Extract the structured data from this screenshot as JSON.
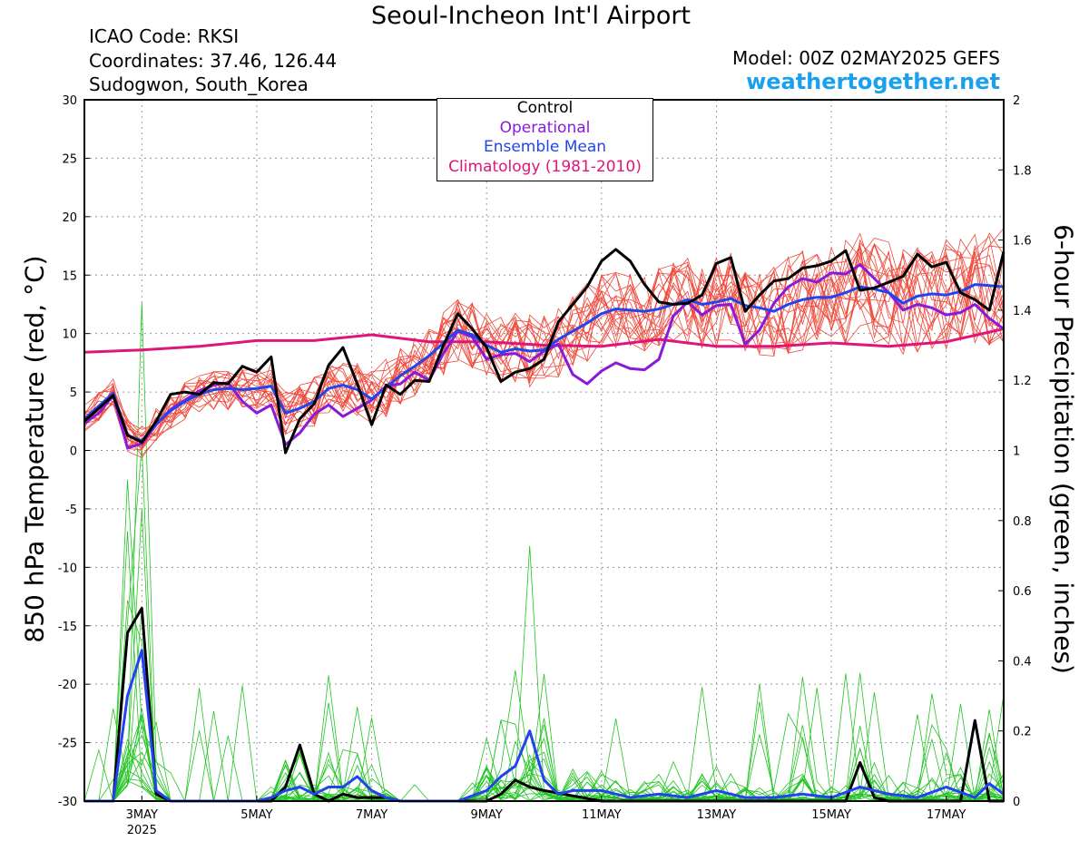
{
  "header": {
    "title": "Seoul-Incheon Int'l Airport",
    "icao": "ICAO Code: RKSI",
    "coordinates": "Coordinates: 37.46, 126.44",
    "location": "Sudogwon, South_Korea",
    "model": "Model: 00Z 02MAY2025 GEFS",
    "site": "weathertogether.net"
  },
  "legend": [
    {
      "label": "Control",
      "color": "#000000"
    },
    {
      "label": "Operational",
      "color": "#8a1ad8"
    },
    {
      "label": "Ensemble Mean",
      "color": "#2244ee"
    },
    {
      "label": "Climatology (1981-2010)",
      "color": "#e0157a"
    }
  ],
  "colors": {
    "members_temp": "#f0483a",
    "members_precip": "#22c422",
    "control": "#000000",
    "operational": "#8a1ad8",
    "mean": "#2244ee",
    "climatology": "#e0157a",
    "grid": "#999999"
  },
  "chart_data": {
    "type": "line",
    "xlabel": "",
    "ylabel": "850 hPa Temperature (red, °C)",
    "y2label": "6-hour Precipitation (green, inches)",
    "x_range_days": [
      2.0,
      18.0
    ],
    "ylim": [
      -30,
      30
    ],
    "y2lim": [
      0,
      2
    ],
    "grid": true,
    "legend_position": "top-center",
    "x_ticks": [
      {
        "day": 3,
        "label": "3MAY",
        "sublabel": "2025"
      },
      {
        "day": 5,
        "label": "5MAY",
        "sublabel": ""
      },
      {
        "day": 7,
        "label": "7MAY",
        "sublabel": ""
      },
      {
        "day": 9,
        "label": "9MAY",
        "sublabel": ""
      },
      {
        "day": 11,
        "label": "11MAY",
        "sublabel": ""
      },
      {
        "day": 13,
        "label": "13MAY",
        "sublabel": ""
      },
      {
        "day": 15,
        "label": "15MAY",
        "sublabel": ""
      },
      {
        "day": 17,
        "label": "17MAY",
        "sublabel": ""
      }
    ],
    "y_ticks": [
      30,
      25,
      20,
      15,
      10,
      5,
      0,
      -5,
      -10,
      -15,
      -20,
      -25,
      -30
    ],
    "y2_ticks": [
      2,
      1.8,
      1.6,
      1.4,
      1.2,
      1,
      0.8,
      0.6,
      0.4,
      0.2,
      0
    ],
    "temperature_series": [
      {
        "name": "Control",
        "x": [
          2.0,
          2.5,
          2.75,
          3.0,
          3.25,
          3.5,
          3.75,
          4.0,
          4.25,
          4.5,
          4.75,
          5.0,
          5.25,
          5.5,
          5.75,
          6.0,
          6.25,
          6.5,
          6.75,
          7.0,
          7.25,
          7.5,
          7.75,
          8.0,
          8.25,
          8.5,
          8.75,
          9.0,
          9.25,
          9.5,
          9.75,
          10.0,
          10.25,
          10.5,
          10.75,
          11.0,
          11.25,
          11.5,
          11.75,
          12.0,
          12.25,
          12.5,
          12.75,
          13.0,
          13.25,
          13.5,
          13.75,
          14.0,
          14.25,
          14.5,
          14.75,
          15.0,
          15.25,
          15.5,
          15.75,
          16.0,
          16.25,
          16.5,
          16.75,
          17.0,
          17.25,
          17.5,
          17.75,
          18.0
        ],
        "y": [
          2.5,
          4.7,
          1.3,
          0.7,
          2.5,
          4.8,
          5.0,
          4.8,
          5.8,
          5.7,
          7.2,
          6.7,
          8.0,
          -0.2,
          2.7,
          4.0,
          7.3,
          8.8,
          5.7,
          2.2,
          5.6,
          4.8,
          6.0,
          5.9,
          9.0,
          11.7,
          10.4,
          8.8,
          5.9,
          6.7,
          7.0,
          7.8,
          11.0,
          12.5,
          14.0,
          16.2,
          17.2,
          16.2,
          14.2,
          12.7,
          12.5,
          12.6,
          13.3,
          16.0,
          16.5,
          11.9,
          13.3,
          14.5,
          14.7,
          15.6,
          15.8,
          16.2,
          17.1,
          13.7,
          13.9,
          14.4,
          14.9,
          16.8,
          15.7,
          16.1,
          13.5,
          12.9,
          12.0,
          17.0
        ]
      },
      {
        "name": "Operational",
        "x": [
          2.0,
          2.25,
          2.5,
          2.75,
          3.0,
          3.25,
          3.5,
          3.75,
          4.0,
          4.25,
          4.5,
          4.75,
          5.0,
          5.25,
          5.5,
          5.75,
          6.0,
          6.25,
          6.5,
          6.75,
          7.0,
          7.25,
          7.5,
          7.75,
          8.0,
          8.25,
          8.5,
          8.75,
          9.0,
          9.25,
          9.5,
          9.75,
          10.0,
          10.25,
          10.5,
          10.75,
          11.0,
          11.25,
          11.5,
          11.75,
          12.0,
          12.25,
          12.5,
          12.75,
          13.0,
          13.25,
          13.5,
          13.75,
          14.0,
          14.25,
          14.5,
          14.75,
          15.0,
          15.25,
          15.5,
          15.75,
          16.0,
          16.25,
          16.5,
          16.75,
          17.0,
          17.25,
          17.5,
          17.75,
          18.0
        ],
        "y": [
          2.3,
          3.2,
          4.7,
          0.2,
          0.6,
          2.2,
          3.5,
          4.3,
          5.1,
          5.6,
          5.8,
          4.2,
          3.2,
          3.9,
          0.5,
          1.5,
          3.1,
          3.9,
          2.9,
          3.6,
          4.3,
          5.5,
          5.7,
          6.7,
          6.0,
          8.3,
          10.2,
          9.7,
          7.8,
          8.2,
          8.3,
          7.6,
          8.5,
          9.1,
          6.5,
          5.7,
          6.8,
          7.5,
          7.0,
          6.9,
          7.8,
          11.5,
          12.7,
          11.6,
          12.4,
          12.5,
          9.1,
          10.3,
          12.6,
          14.0,
          14.7,
          14.4,
          15.2,
          15.1,
          15.9,
          14.7,
          13.5,
          12.0,
          12.5,
          12.2,
          11.6,
          11.8,
          12.5,
          11.3,
          10.4
        ]
      },
      {
        "name": "Ensemble Mean",
        "x": [
          2.0,
          2.5,
          2.75,
          3.0,
          3.25,
          3.5,
          3.75,
          4.0,
          4.25,
          4.5,
          4.75,
          5.0,
          5.25,
          5.5,
          5.75,
          6.0,
          6.25,
          6.5,
          6.75,
          7.0,
          7.25,
          7.5,
          7.75,
          8.0,
          8.25,
          8.5,
          8.75,
          9.0,
          9.25,
          9.5,
          9.75,
          10.0,
          10.25,
          10.5,
          10.75,
          11.0,
          11.25,
          11.5,
          11.75,
          12.0,
          12.25,
          12.5,
          12.75,
          13.0,
          13.25,
          13.5,
          13.75,
          14.0,
          14.25,
          14.5,
          14.75,
          15.0,
          15.25,
          15.5,
          15.75,
          16.0,
          16.25,
          16.5,
          16.75,
          17.0,
          17.25,
          17.5,
          17.75,
          18.0
        ],
        "y": [
          2.7,
          4.9,
          1.3,
          0.8,
          2.3,
          3.4,
          4.2,
          4.8,
          5.2,
          5.3,
          5.2,
          5.3,
          5.5,
          3.2,
          3.6,
          4.2,
          5.3,
          5.6,
          5.2,
          4.4,
          5.4,
          6.4,
          7.2,
          8.1,
          9.2,
          10.3,
          9.9,
          9.0,
          8.4,
          8.7,
          8.5,
          8.6,
          9.5,
          10.2,
          10.9,
          11.7,
          12.1,
          12.0,
          11.9,
          12.1,
          12.5,
          12.9,
          12.5,
          12.7,
          13.0,
          12.4,
          12.2,
          11.9,
          12.5,
          12.9,
          13.1,
          13.1,
          13.5,
          14.0,
          13.8,
          13.5,
          12.6,
          13.2,
          13.4,
          13.3,
          13.6,
          14.2,
          14.1,
          14.0
        ]
      },
      {
        "name": "Climatology (1981-2010)",
        "x": [
          2.0,
          3.0,
          4.0,
          5.0,
          6.0,
          7.0,
          8.0,
          9.0,
          10.0,
          11.0,
          12.0,
          13.0,
          14.0,
          15.0,
          16.0,
          17.0,
          18.0
        ],
        "y": [
          8.4,
          8.6,
          8.9,
          9.4,
          9.4,
          9.9,
          9.3,
          9.3,
          9.0,
          8.9,
          9.5,
          8.9,
          8.9,
          9.2,
          8.9,
          9.3,
          10.4
        ]
      }
    ],
    "precipitation_series": [
      {
        "name": "Control",
        "x": [
          2.0,
          2.5,
          2.75,
          3.0,
          3.25,
          3.5,
          4.0,
          5.0,
          5.25,
          5.5,
          5.75,
          6.0,
          6.25,
          6.5,
          6.75,
          7.0,
          7.25,
          7.5,
          8.0,
          9.0,
          9.25,
          9.5,
          9.75,
          10.0,
          11.0,
          12.0,
          13.0,
          14.0,
          15.0,
          15.25,
          15.5,
          15.75,
          16.0,
          17.0,
          17.25,
          17.5,
          17.75,
          18.0
        ],
        "y": [
          0.0,
          0.0,
          0.48,
          0.55,
          0.02,
          0.0,
          0.0,
          0.0,
          0.0,
          0.04,
          0.16,
          0.02,
          0.0,
          0.02,
          0.01,
          0.01,
          0.01,
          0.0,
          0.0,
          0.0,
          0.02,
          0.06,
          0.04,
          0.03,
          0.0,
          0.0,
          0.0,
          0.0,
          0.0,
          0.0,
          0.11,
          0.01,
          0.0,
          0.0,
          0.0,
          0.23,
          0.0,
          0.0
        ]
      },
      {
        "name": "Ensemble Mean",
        "x": [
          2.0,
          2.5,
          2.75,
          3.0,
          3.25,
          3.5,
          4.0,
          5.0,
          5.25,
          5.5,
          5.75,
          6.0,
          6.25,
          6.5,
          6.75,
          7.0,
          7.25,
          7.5,
          8.0,
          8.5,
          9.0,
          9.25,
          9.5,
          9.75,
          10.0,
          10.25,
          10.5,
          11.0,
          11.5,
          12.0,
          12.5,
          13.0,
          13.5,
          14.0,
          14.5,
          15.0,
          15.5,
          16.0,
          16.5,
          17.0,
          17.5,
          17.75,
          18.0
        ],
        "y": [
          0.0,
          0.0,
          0.3,
          0.43,
          0.03,
          0.0,
          0.0,
          0.0,
          0.01,
          0.03,
          0.04,
          0.02,
          0.04,
          0.04,
          0.07,
          0.03,
          0.01,
          0.0,
          0.0,
          0.0,
          0.03,
          0.07,
          0.1,
          0.2,
          0.06,
          0.02,
          0.03,
          0.03,
          0.01,
          0.02,
          0.01,
          0.03,
          0.01,
          0.01,
          0.02,
          0.01,
          0.04,
          0.02,
          0.01,
          0.04,
          0.01,
          0.05,
          0.02
        ]
      }
    ]
  }
}
